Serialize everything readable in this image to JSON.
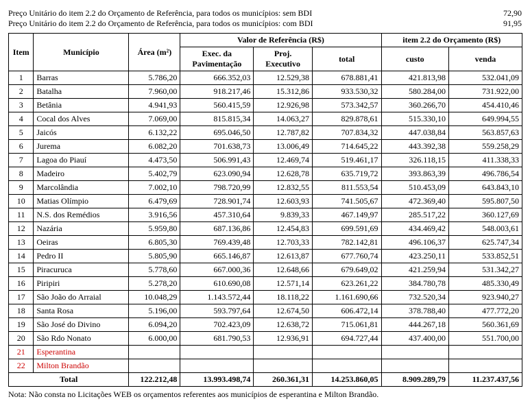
{
  "price_lines": [
    {
      "label": "Preço Unitário do item 2.2 do Orçamento de Referência, para todos os municípios: sem BDI",
      "value": "72,90"
    },
    {
      "label": "Preço Unitário do item 2.2 do Orçamento de Referência, para todos os municípios: com BDI",
      "value": "91,95"
    }
  ],
  "headers": {
    "item": "Item",
    "municipio": "Município",
    "area": "Área (m²)",
    "valor_ref": "Valor de Referência (R$)",
    "exec_pav": "Exec. da Pavimentação",
    "proj_exec": "Proj. Executivo",
    "total": "total",
    "item22": "item 2.2 do Orçamento (R$)",
    "custo": "custo",
    "venda": "venda"
  },
  "rows": [
    {
      "idx": "1",
      "mun": "Barras",
      "area": "5.786,20",
      "pav": "666.352,03",
      "proj": "12.529,38",
      "tot": "678.881,41",
      "custo": "421.813,98",
      "venda": "532.041,09"
    },
    {
      "idx": "2",
      "mun": "Batalha",
      "area": "7.960,00",
      "pav": "918.217,46",
      "proj": "15.312,86",
      "tot": "933.530,32",
      "custo": "580.284,00",
      "venda": "731.922,00"
    },
    {
      "idx": "3",
      "mun": "Betânia",
      "area": "4.941,93",
      "pav": "560.415,59",
      "proj": "12.926,98",
      "tot": "573.342,57",
      "custo": "360.266,70",
      "venda": "454.410,46"
    },
    {
      "idx": "4",
      "mun": "Cocal dos Alves",
      "area": "7.069,00",
      "pav": "815.815,34",
      "proj": "14.063,27",
      "tot": "829.878,61",
      "custo": "515.330,10",
      "venda": "649.994,55"
    },
    {
      "idx": "5",
      "mun": "Jaicós",
      "area": "6.132,22",
      "pav": "695.046,50",
      "proj": "12.787,82",
      "tot": "707.834,32",
      "custo": "447.038,84",
      "venda": "563.857,63"
    },
    {
      "idx": "6",
      "mun": "Jurema",
      "area": "6.082,20",
      "pav": "701.638,73",
      "proj": "13.006,49",
      "tot": "714.645,22",
      "custo": "443.392,38",
      "venda": "559.258,29"
    },
    {
      "idx": "7",
      "mun": "Lagoa do Piauí",
      "area": "4.473,50",
      "pav": "506.991,43",
      "proj": "12.469,74",
      "tot": "519.461,17",
      "custo": "326.118,15",
      "venda": "411.338,33"
    },
    {
      "idx": "8",
      "mun": "Madeiro",
      "area": "5.402,79",
      "pav": "623.090,94",
      "proj": "12.628,78",
      "tot": "635.719,72",
      "custo": "393.863,39",
      "venda": "496.786,54"
    },
    {
      "idx": "9",
      "mun": "Marcolândia",
      "area": "7.002,10",
      "pav": "798.720,99",
      "proj": "12.832,55",
      "tot": "811.553,54",
      "custo": "510.453,09",
      "venda": "643.843,10"
    },
    {
      "idx": "10",
      "mun": "Matias Olímpio",
      "area": "6.479,69",
      "pav": "728.901,74",
      "proj": "12.603,93",
      "tot": "741.505,67",
      "custo": "472.369,40",
      "venda": "595.807,50"
    },
    {
      "idx": "11",
      "mun": "N.S. dos Remédios",
      "area": "3.916,56",
      "pav": "457.310,64",
      "proj": "9.839,33",
      "tot": "467.149,97",
      "custo": "285.517,22",
      "venda": "360.127,69"
    },
    {
      "idx": "12",
      "mun": "Nazária",
      "area": "5.959,80",
      "pav": "687.136,86",
      "proj": "12.454,83",
      "tot": "699.591,69",
      "custo": "434.469,42",
      "venda": "548.003,61"
    },
    {
      "idx": "13",
      "mun": "Oeiras",
      "area": "6.805,30",
      "pav": "769.439,48",
      "proj": "12.703,33",
      "tot": "782.142,81",
      "custo": "496.106,37",
      "venda": "625.747,34"
    },
    {
      "idx": "14",
      "mun": "Pedro II",
      "area": "5.805,90",
      "pav": "665.146,87",
      "proj": "12.613,87",
      "tot": "677.760,74",
      "custo": "423.250,11",
      "venda": "533.852,51"
    },
    {
      "idx": "15",
      "mun": "Piracuruca",
      "area": "5.778,60",
      "pav": "667.000,36",
      "proj": "12.648,66",
      "tot": "679.649,02",
      "custo": "421.259,94",
      "venda": "531.342,27"
    },
    {
      "idx": "16",
      "mun": "Piripiri",
      "area": "5.278,20",
      "pav": "610.690,08",
      "proj": "12.571,14",
      "tot": "623.261,22",
      "custo": "384.780,78",
      "venda": "485.330,49"
    },
    {
      "idx": "17",
      "mun": "São João do Arraial",
      "area": "10.048,29",
      "pav": "1.143.572,44",
      "proj": "18.118,22",
      "tot": "1.161.690,66",
      "custo": "732.520,34",
      "venda": "923.940,27"
    },
    {
      "idx": "18",
      "mun": "Santa Rosa",
      "area": "5.196,00",
      "pav": "593.797,64",
      "proj": "12.674,50",
      "tot": "606.472,14",
      "custo": "378.788,40",
      "venda": "477.772,20"
    },
    {
      "idx": "19",
      "mun": "São José do Divino",
      "area": "6.094,20",
      "pav": "702.423,09",
      "proj": "12.638,72",
      "tot": "715.061,81",
      "custo": "444.267,18",
      "venda": "560.361,69"
    },
    {
      "idx": "20",
      "mun": "São Rdo Nonato",
      "area": "6.000,00",
      "pav": "681.790,53",
      "proj": "12.936,91",
      "tot": "694.727,44",
      "custo": "437.400,00",
      "venda": "551.700,00"
    },
    {
      "idx": "21",
      "mun": "Esperantina",
      "area": "",
      "pav": "",
      "proj": "",
      "tot": "",
      "custo": "",
      "venda": "",
      "red": true
    },
    {
      "idx": "22",
      "mun": "Milton Brandão",
      "area": "",
      "pav": "",
      "proj": "",
      "tot": "",
      "custo": "",
      "venda": "",
      "red": true
    }
  ],
  "total": {
    "label": "Total",
    "area": "122.212,48",
    "pav": "13.993.498,74",
    "proj": "260.361,31",
    "tot": "14.253.860,05",
    "custo": "8.909.289,79",
    "venda": "11.237.437,56"
  },
  "note": "Nota: Não consta no Licitações WEB os orçamentos referentes aos municípios de esperantina e Milton Brandão."
}
